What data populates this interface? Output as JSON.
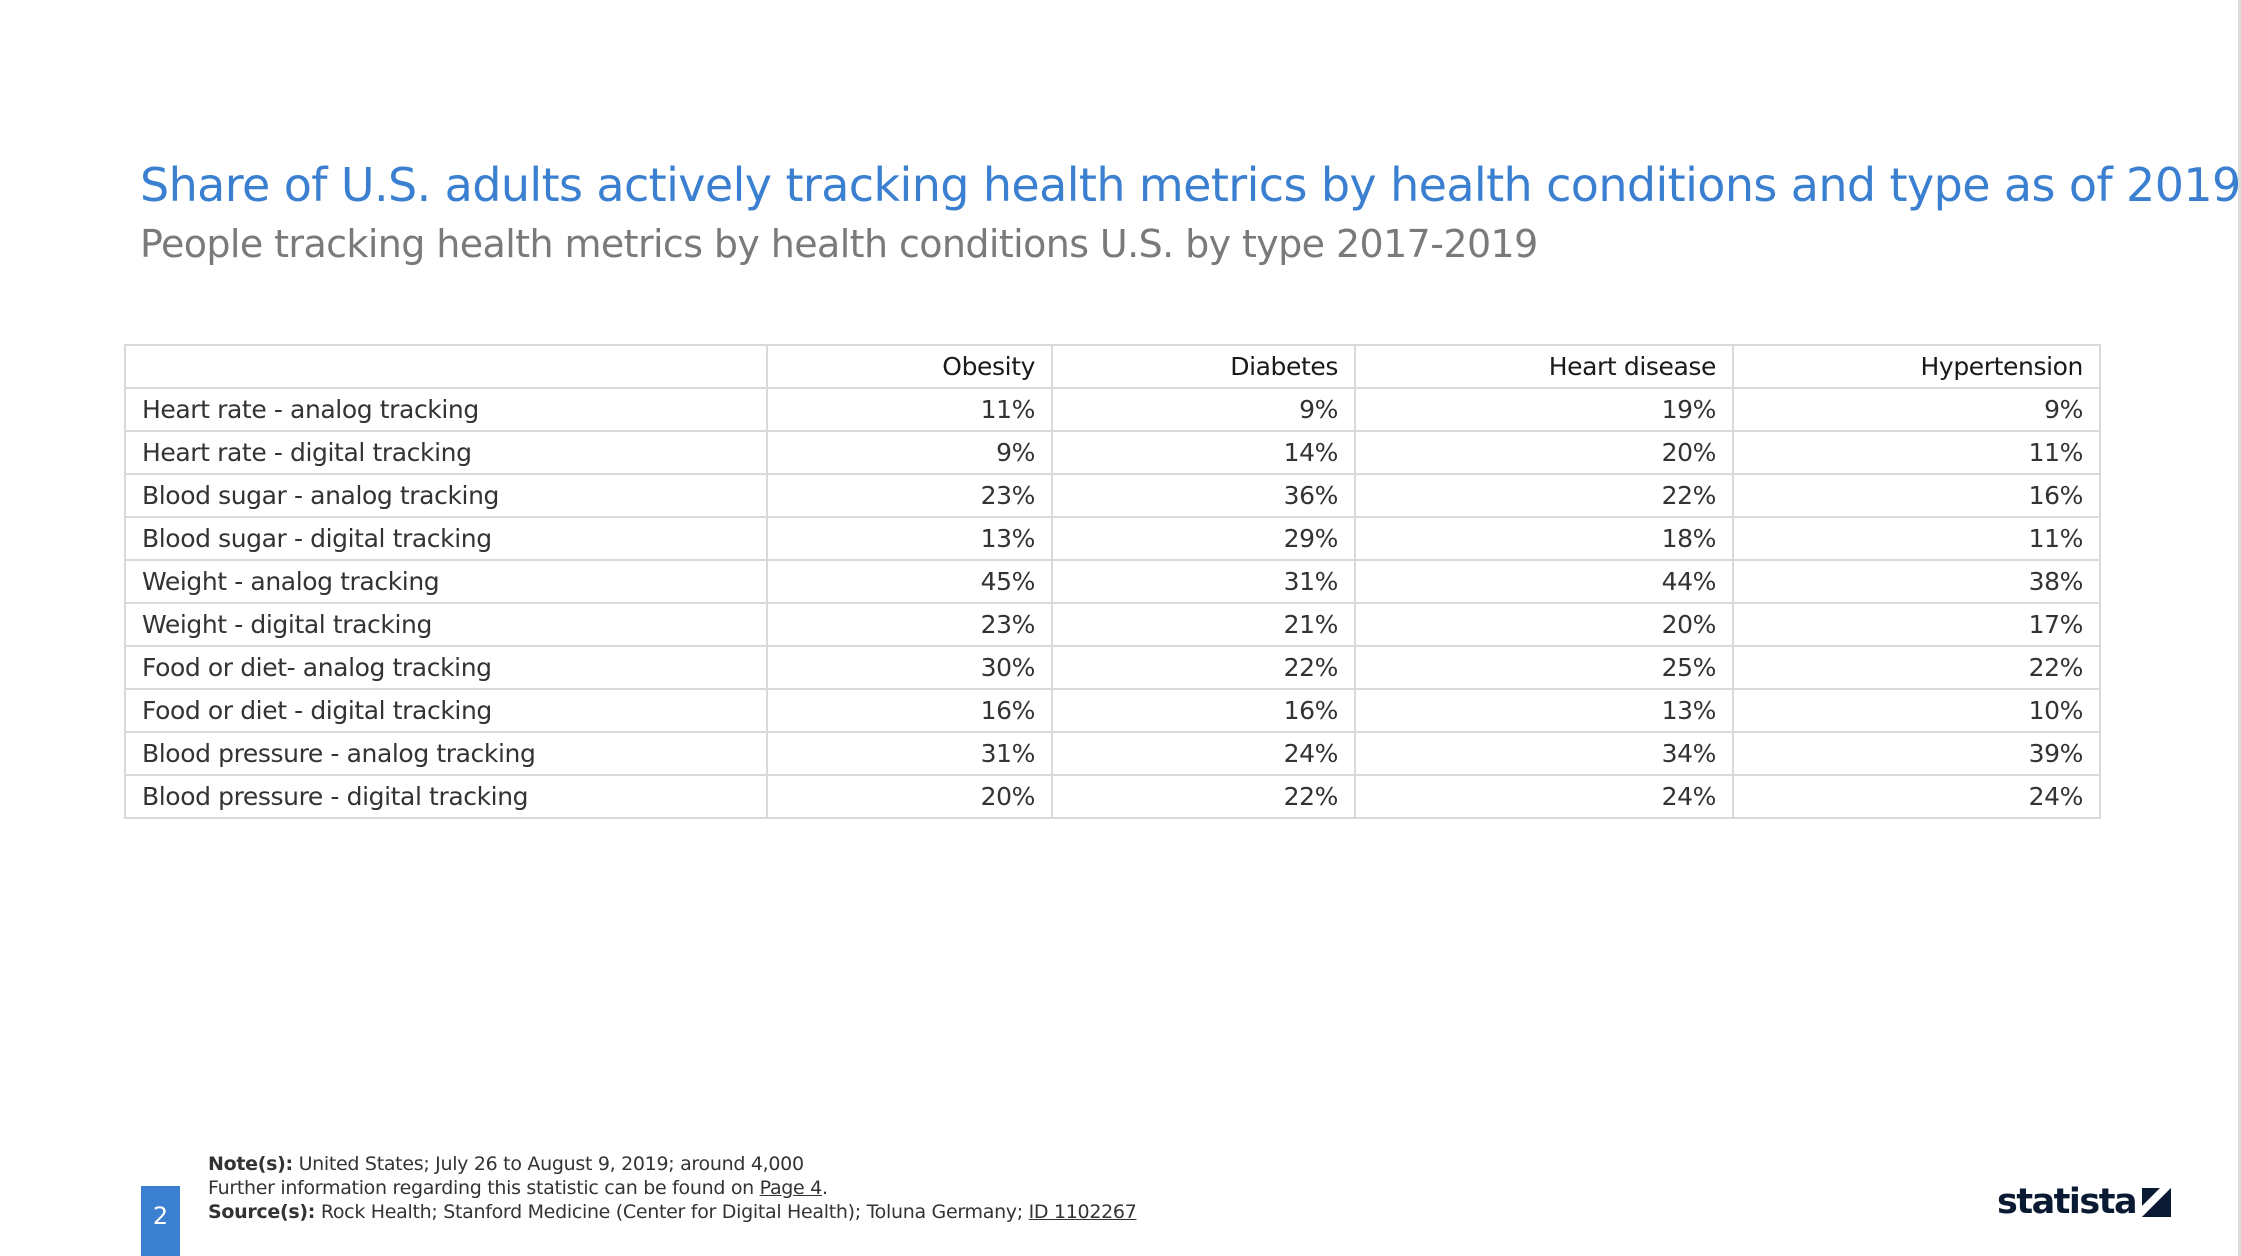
{
  "header": {
    "title": "Share of U.S. adults actively tracking health metrics by health conditions and type as of 2019",
    "subtitle": "People tracking health metrics by health conditions U.S. by type 2017-2019"
  },
  "chart_data": {
    "type": "table",
    "title": "Share of U.S. adults actively tracking health metrics by health conditions and type as of 2019",
    "subtitle": "People tracking health metrics by health conditions U.S. by type 2017-2019",
    "columns": [
      "",
      "Obesity",
      "Diabetes",
      "Heart disease",
      "Hypertension"
    ],
    "rows": [
      [
        "Heart rate - analog tracking",
        "11%",
        "9%",
        "19%",
        "9%"
      ],
      [
        "Heart rate - digital tracking",
        "9%",
        "14%",
        "20%",
        "11%"
      ],
      [
        "Blood sugar - analog tracking",
        "23%",
        "36%",
        "22%",
        "16%"
      ],
      [
        "Blood sugar - digital tracking",
        "13%",
        "29%",
        "18%",
        "11%"
      ],
      [
        "Weight - analog tracking",
        "45%",
        "31%",
        "44%",
        "38%"
      ],
      [
        "Weight - digital tracking",
        "23%",
        "21%",
        "20%",
        "17%"
      ],
      [
        "Food or diet- analog tracking",
        "30%",
        "22%",
        "25%",
        "22%"
      ],
      [
        "Food or diet - digital tracking",
        "16%",
        "16%",
        "13%",
        "10%"
      ],
      [
        "Blood pressure - analog tracking",
        "31%",
        "24%",
        "34%",
        "39%"
      ],
      [
        "Blood pressure - digital tracking",
        "20%",
        "22%",
        "24%",
        "24%"
      ]
    ]
  },
  "footer": {
    "notes_label": "Note(s):",
    "notes_text": "United States; July 26 to August 9, 2019; around 4,000",
    "further_text": "Further information regarding this statistic can be found on ",
    "further_link": "Page 4",
    "further_end": ".",
    "source_label": "Source(s):",
    "source_text": "Rock Health; Stanford Medicine (Center for Digital Health); Toluna Germany; ",
    "source_id": "ID 1102267",
    "page_number": "2",
    "logo_text": "statista"
  },
  "colors": {
    "title": "#3a7fd0",
    "subtitle": "#7a7a7a",
    "badge": "#3a7fd0",
    "logo": "#0b1a33",
    "grid": "#d9d9d9"
  }
}
